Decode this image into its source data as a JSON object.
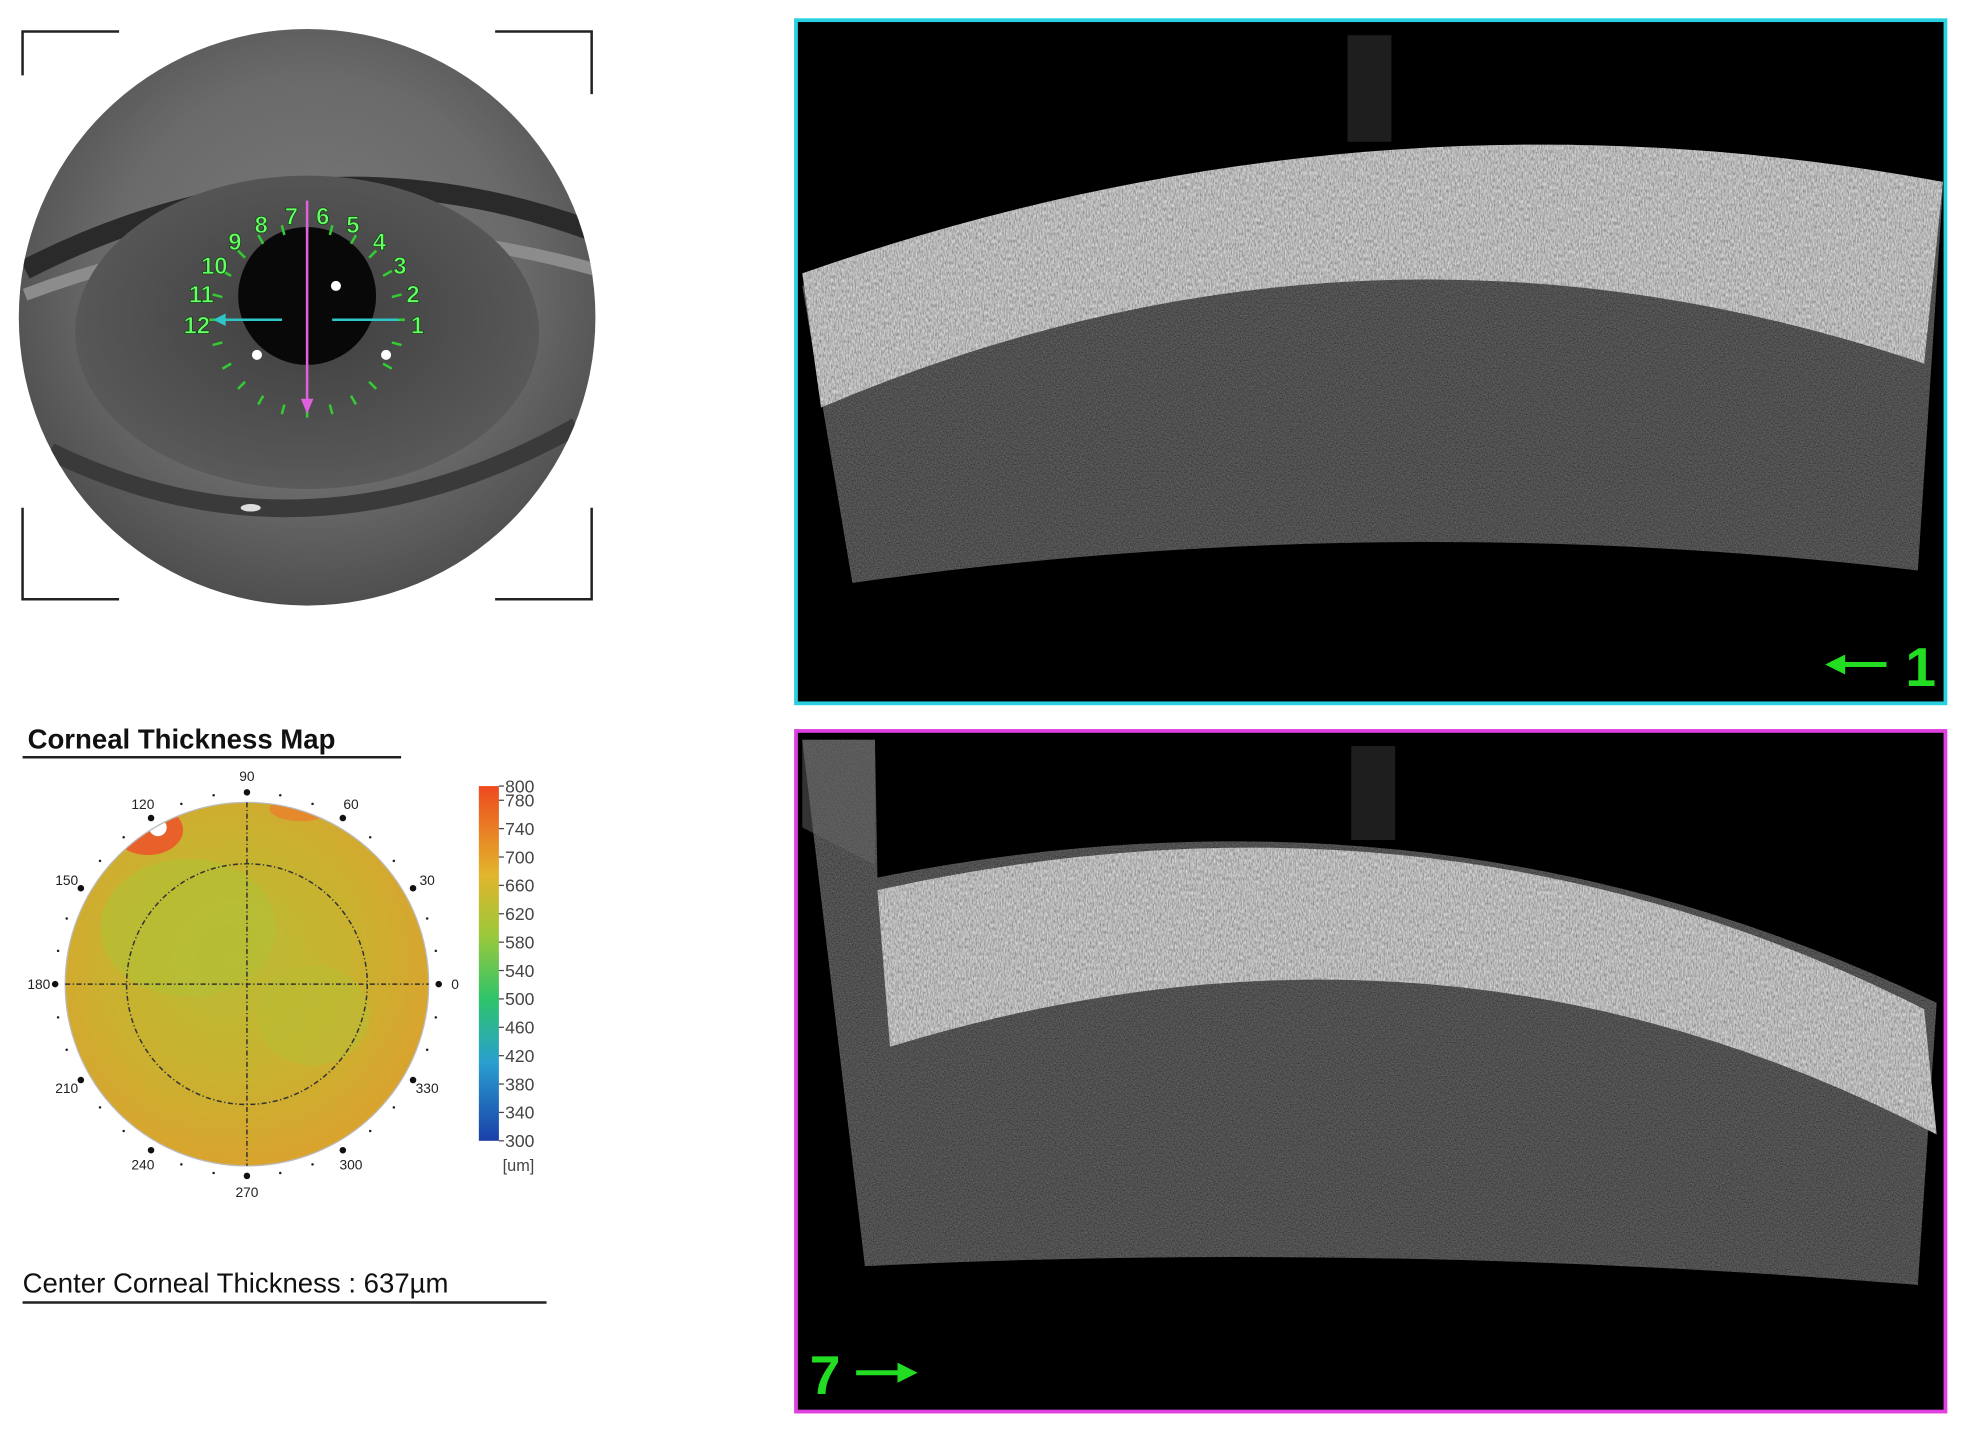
{
  "eye_view": {
    "clock_labels": [
      "1",
      "2",
      "3",
      "4",
      "5",
      "6",
      "7",
      "8",
      "9",
      "10",
      "11",
      "12"
    ]
  },
  "thickness_map": {
    "title": "Corneal Thickness Map",
    "angle_labels": [
      90,
      60,
      30,
      0,
      330,
      300,
      270,
      240,
      210,
      180,
      150,
      120
    ],
    "colorbar": {
      "lim": [
        300,
        800
      ],
      "ticks": [
        800,
        780,
        740,
        700,
        660,
        620,
        580,
        540,
        500,
        460,
        420,
        380,
        340,
        300
      ],
      "unit": "[um]"
    }
  },
  "center_thickness": "Center Corneal Thickness : 637µm",
  "scans": [
    {
      "label": "1"
    },
    {
      "label": "7"
    }
  ]
}
